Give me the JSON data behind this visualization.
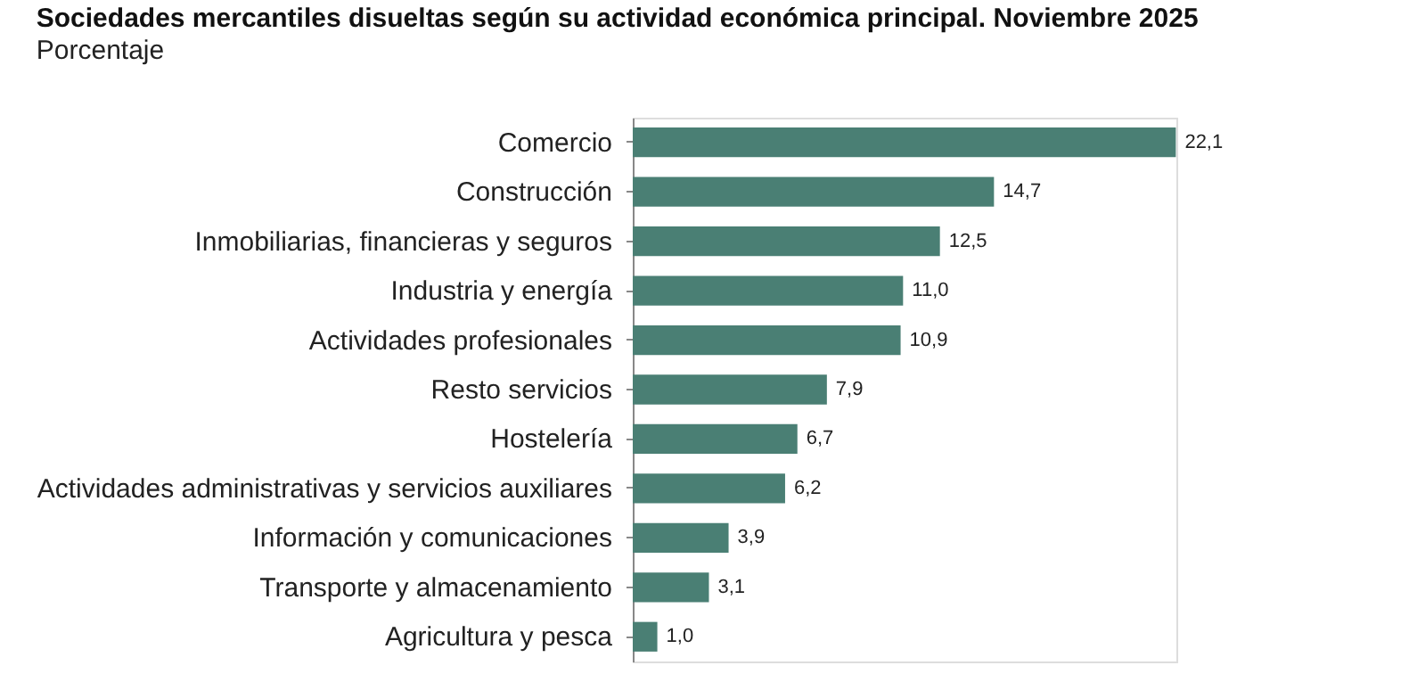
{
  "chart_data": {
    "type": "bar",
    "orientation": "horizontal",
    "title": "Sociedades mercantiles disueltas según su actividad económica principal. Noviembre 2025",
    "subtitle": "Porcentaje",
    "categories": [
      "Comercio",
      "Construcción",
      "Inmobiliarias, financieras y seguros",
      "Industria y energía",
      "Actividades profesionales",
      "Resto servicios",
      "Hostelería",
      "Actividades administrativas y servicios auxiliares",
      "Información y comunicaciones",
      "Transporte y almacenamiento",
      "Agricultura y pesca"
    ],
    "values": [
      22.1,
      14.7,
      12.5,
      11.0,
      10.9,
      7.9,
      6.7,
      6.2,
      3.9,
      3.1,
      1.0
    ],
    "value_labels": [
      "22,1",
      "14,7",
      "12,5",
      "11,0",
      "10,9",
      "7,9",
      "6,7",
      "6,2",
      "3,9",
      "3,1",
      "1,0"
    ],
    "color": "#4a7f74"
  }
}
